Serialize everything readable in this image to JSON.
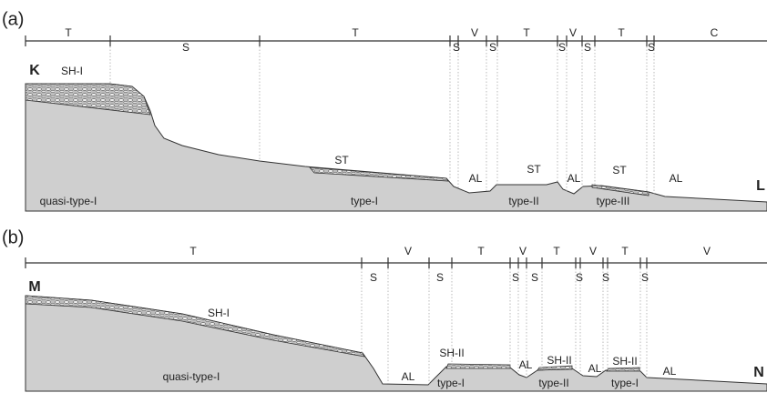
{
  "panels": [
    {
      "label": "(a)",
      "zones_above": [
        "T",
        "T",
        "V",
        "T",
        "V",
        "T",
        "C"
      ],
      "zones_below": [
        "S",
        "S",
        "S",
        "S",
        "S",
        "S"
      ],
      "ends": [
        "K",
        "L"
      ],
      "features": [
        "SH-I",
        "ST",
        "AL",
        "ST",
        "AL",
        "ST",
        "AL"
      ],
      "types": [
        "quasi-type-I",
        "type-I",
        "type-II",
        "type-III"
      ]
    },
    {
      "label": "(b)",
      "zones_above": [
        "T",
        "V",
        "T",
        "V",
        "T",
        "V",
        "T",
        "V"
      ],
      "zones_below": [
        "S",
        "S",
        "S",
        "S",
        "S",
        "S",
        "S"
      ],
      "ends": [
        "M",
        "N"
      ],
      "features": [
        "SH-I",
        "AL",
        "SH-II",
        "AL",
        "SH-II",
        "AL",
        "SH-II",
        "AL"
      ],
      "types": [
        "quasi-type-I",
        "type-I",
        "type-II",
        "type-I"
      ]
    }
  ]
}
